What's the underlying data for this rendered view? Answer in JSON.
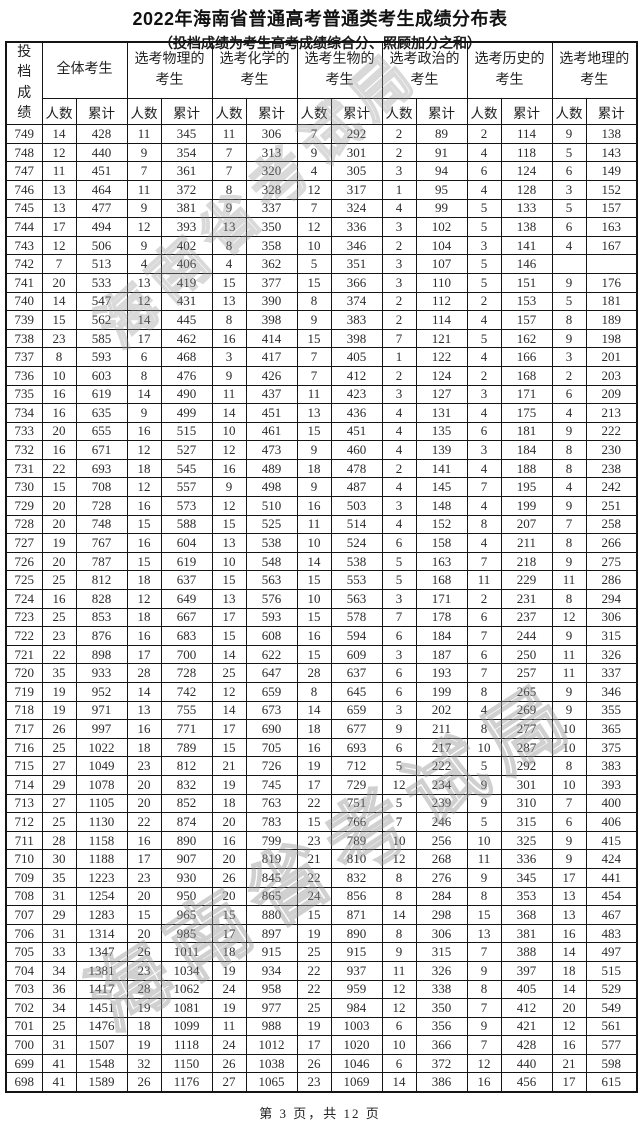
{
  "page": {
    "title": "2022年海南省普通高考普通类考生成绩分布表",
    "subtitle": "（投档成绩为考生高考成绩综合分、照顾加分之和）",
    "footer": "第 3 页，共 12 页",
    "watermark": "海南省考试局"
  },
  "table": {
    "score_header": "投档成绩",
    "subheaders": {
      "count": "人数",
      "cumulative": "累计"
    },
    "groups": [
      "全体考生",
      "选考物理的考生",
      "选考化学的考生",
      "选考生物的考生",
      "选考政治的考生",
      "选考历史的考生",
      "选考地理的考生"
    ],
    "rows": [
      [
        749,
        14,
        428,
        11,
        345,
        11,
        306,
        7,
        292,
        2,
        89,
        2,
        114,
        9,
        138
      ],
      [
        748,
        12,
        440,
        9,
        354,
        7,
        313,
        9,
        301,
        2,
        91,
        4,
        118,
        5,
        143
      ],
      [
        747,
        11,
        451,
        7,
        361,
        7,
        320,
        4,
        305,
        3,
        94,
        6,
        124,
        6,
        149
      ],
      [
        746,
        13,
        464,
        11,
        372,
        8,
        328,
        12,
        317,
        1,
        95,
        4,
        128,
        3,
        152
      ],
      [
        745,
        13,
        477,
        9,
        381,
        9,
        337,
        7,
        324,
        4,
        99,
        5,
        133,
        5,
        157
      ],
      [
        744,
        17,
        494,
        12,
        393,
        13,
        350,
        12,
        336,
        3,
        102,
        5,
        138,
        6,
        163
      ],
      [
        743,
        12,
        506,
        9,
        402,
        8,
        358,
        10,
        346,
        2,
        104,
        3,
        141,
        4,
        167
      ],
      [
        742,
        7,
        513,
        4,
        406,
        4,
        362,
        5,
        351,
        3,
        107,
        5,
        146,
        "",
        ""
      ],
      [
        741,
        20,
        533,
        13,
        419,
        15,
        377,
        15,
        366,
        3,
        110,
        5,
        151,
        9,
        176
      ],
      [
        740,
        14,
        547,
        12,
        431,
        13,
        390,
        8,
        374,
        2,
        112,
        2,
        153,
        5,
        181
      ],
      [
        739,
        15,
        562,
        14,
        445,
        8,
        398,
        9,
        383,
        2,
        114,
        4,
        157,
        8,
        189
      ],
      [
        738,
        23,
        585,
        17,
        462,
        16,
        414,
        15,
        398,
        7,
        121,
        5,
        162,
        9,
        198
      ],
      [
        737,
        8,
        593,
        6,
        468,
        3,
        417,
        7,
        405,
        1,
        122,
        4,
        166,
        3,
        201
      ],
      [
        736,
        10,
        603,
        8,
        476,
        9,
        426,
        7,
        412,
        2,
        124,
        2,
        168,
        2,
        203
      ],
      [
        735,
        16,
        619,
        14,
        490,
        11,
        437,
        11,
        423,
        3,
        127,
        3,
        171,
        6,
        209
      ],
      [
        734,
        16,
        635,
        9,
        499,
        14,
        451,
        13,
        436,
        4,
        131,
        4,
        175,
        4,
        213
      ],
      [
        733,
        20,
        655,
        16,
        515,
        10,
        461,
        15,
        451,
        4,
        135,
        6,
        181,
        9,
        222
      ],
      [
        732,
        16,
        671,
        12,
        527,
        12,
        473,
        9,
        460,
        4,
        139,
        3,
        184,
        8,
        230
      ],
      [
        731,
        22,
        693,
        18,
        545,
        16,
        489,
        18,
        478,
        2,
        141,
        4,
        188,
        8,
        238
      ],
      [
        730,
        15,
        708,
        12,
        557,
        9,
        498,
        9,
        487,
        4,
        145,
        7,
        195,
        4,
        242
      ],
      [
        729,
        20,
        728,
        16,
        573,
        12,
        510,
        16,
        503,
        3,
        148,
        4,
        199,
        9,
        251
      ],
      [
        728,
        20,
        748,
        15,
        588,
        15,
        525,
        11,
        514,
        4,
        152,
        8,
        207,
        7,
        258
      ],
      [
        727,
        19,
        767,
        16,
        604,
        13,
        538,
        10,
        524,
        6,
        158,
        4,
        211,
        8,
        266
      ],
      [
        726,
        20,
        787,
        15,
        619,
        10,
        548,
        14,
        538,
        5,
        163,
        7,
        218,
        9,
        275
      ],
      [
        725,
        25,
        812,
        18,
        637,
        15,
        563,
        15,
        553,
        5,
        168,
        11,
        229,
        11,
        286
      ],
      [
        724,
        16,
        828,
        12,
        649,
        13,
        576,
        10,
        563,
        3,
        171,
        2,
        231,
        8,
        294
      ],
      [
        723,
        25,
        853,
        18,
        667,
        17,
        593,
        15,
        578,
        7,
        178,
        6,
        237,
        12,
        306
      ],
      [
        722,
        23,
        876,
        16,
        683,
        15,
        608,
        16,
        594,
        6,
        184,
        7,
        244,
        9,
        315
      ],
      [
        721,
        22,
        898,
        17,
        700,
        14,
        622,
        15,
        609,
        3,
        187,
        6,
        250,
        11,
        326
      ],
      [
        720,
        35,
        933,
        28,
        728,
        25,
        647,
        28,
        637,
        6,
        193,
        7,
        257,
        11,
        337
      ],
      [
        719,
        19,
        952,
        14,
        742,
        12,
        659,
        8,
        645,
        6,
        199,
        8,
        265,
        9,
        346
      ],
      [
        718,
        19,
        971,
        13,
        755,
        14,
        673,
        14,
        659,
        3,
        202,
        4,
        269,
        9,
        355
      ],
      [
        717,
        26,
        997,
        16,
        771,
        17,
        690,
        18,
        677,
        9,
        211,
        8,
        277,
        10,
        365
      ],
      [
        716,
        25,
        1022,
        18,
        789,
        15,
        705,
        16,
        693,
        6,
        217,
        10,
        287,
        10,
        375
      ],
      [
        715,
        27,
        1049,
        23,
        812,
        21,
        726,
        19,
        712,
        5,
        222,
        5,
        292,
        8,
        383
      ],
      [
        714,
        29,
        1078,
        20,
        832,
        19,
        745,
        17,
        729,
        12,
        234,
        9,
        301,
        10,
        393
      ],
      [
        713,
        27,
        1105,
        20,
        852,
        18,
        763,
        22,
        751,
        5,
        239,
        9,
        310,
        7,
        400
      ],
      [
        712,
        25,
        1130,
        22,
        874,
        20,
        783,
        15,
        766,
        7,
        246,
        5,
        315,
        6,
        406
      ],
      [
        711,
        28,
        1158,
        16,
        890,
        16,
        799,
        23,
        789,
        10,
        256,
        10,
        325,
        9,
        415
      ],
      [
        710,
        30,
        1188,
        17,
        907,
        20,
        819,
        21,
        810,
        12,
        268,
        11,
        336,
        9,
        424
      ],
      [
        709,
        35,
        1223,
        23,
        930,
        26,
        845,
        22,
        832,
        8,
        276,
        9,
        345,
        17,
        441
      ],
      [
        708,
        31,
        1254,
        20,
        950,
        20,
        865,
        24,
        856,
        8,
        284,
        8,
        353,
        13,
        454
      ],
      [
        707,
        29,
        1283,
        15,
        965,
        15,
        880,
        15,
        871,
        14,
        298,
        15,
        368,
        13,
        467
      ],
      [
        706,
        31,
        1314,
        20,
        985,
        17,
        897,
        19,
        890,
        8,
        306,
        13,
        381,
        16,
        483
      ],
      [
        705,
        33,
        1347,
        26,
        1011,
        18,
        915,
        25,
        915,
        9,
        315,
        7,
        388,
        14,
        497
      ],
      [
        704,
        34,
        1381,
        23,
        1034,
        19,
        934,
        22,
        937,
        11,
        326,
        9,
        397,
        18,
        515
      ],
      [
        703,
        36,
        1417,
        28,
        1062,
        24,
        958,
        22,
        959,
        12,
        338,
        8,
        405,
        14,
        529
      ],
      [
        702,
        34,
        1451,
        19,
        1081,
        19,
        977,
        25,
        984,
        12,
        350,
        7,
        412,
        20,
        549
      ],
      [
        701,
        25,
        1476,
        18,
        1099,
        11,
        988,
        19,
        1003,
        6,
        356,
        9,
        421,
        12,
        561
      ],
      [
        700,
        31,
        1507,
        19,
        1118,
        24,
        1012,
        17,
        1020,
        10,
        366,
        7,
        428,
        16,
        577
      ],
      [
        699,
        41,
        1548,
        32,
        1150,
        26,
        1038,
        26,
        1046,
        6,
        372,
        12,
        440,
        21,
        598
      ],
      [
        698,
        41,
        1589,
        26,
        1176,
        27,
        1065,
        23,
        1069,
        14,
        386,
        16,
        456,
        17,
        615
      ]
    ]
  }
}
